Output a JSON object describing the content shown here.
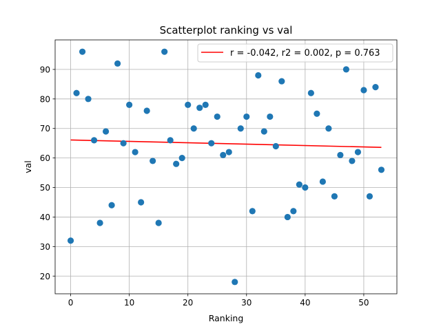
{
  "chart_data": {
    "type": "scatter",
    "title": "Scatterplot ranking vs val",
    "xlabel": "Ranking",
    "ylabel": "val",
    "xlim": [
      -2.65,
      55.65
    ],
    "ylim": [
      14,
      100
    ],
    "xticks": [
      0,
      10,
      20,
      30,
      40,
      50
    ],
    "yticks": [
      20,
      30,
      40,
      50,
      60,
      70,
      80,
      90
    ],
    "grid": true,
    "legend_position": "top-right",
    "colors": {
      "points": "#1f77b4",
      "fit_line": "#ff0000",
      "grid": "#b0b0b0"
    },
    "series": [
      {
        "x": [
          0,
          1,
          2,
          3,
          4,
          5,
          6,
          7,
          8,
          9,
          10,
          11,
          12,
          13,
          14,
          15,
          16,
          17,
          18,
          19,
          20,
          21,
          22,
          23,
          24,
          25,
          26,
          27,
          28,
          29,
          30,
          31,
          32,
          33,
          34,
          35,
          36,
          37,
          38,
          39,
          40,
          41,
          42,
          43,
          44,
          45,
          46,
          47,
          48,
          49,
          50,
          51,
          52,
          53
        ],
        "y": [
          32,
          82,
          96,
          80,
          66,
          38,
          69,
          44,
          92,
          65,
          78,
          62,
          45,
          76,
          59,
          38,
          96,
          66,
          58,
          60,
          78,
          70,
          77,
          78,
          65,
          74,
          61,
          62,
          18,
          70,
          74,
          42,
          88,
          69,
          74,
          64,
          86,
          40,
          42,
          51,
          50,
          82,
          75,
          52,
          70,
          47,
          61,
          90,
          59,
          62,
          83,
          47,
          84,
          56
        ]
      }
    ],
    "fit_line": {
      "label": "r = -0.042, r2 = 0.002, p = 0.763",
      "x": [
        0,
        53
      ],
      "y": [
        66.1,
        63.6
      ]
    }
  }
}
